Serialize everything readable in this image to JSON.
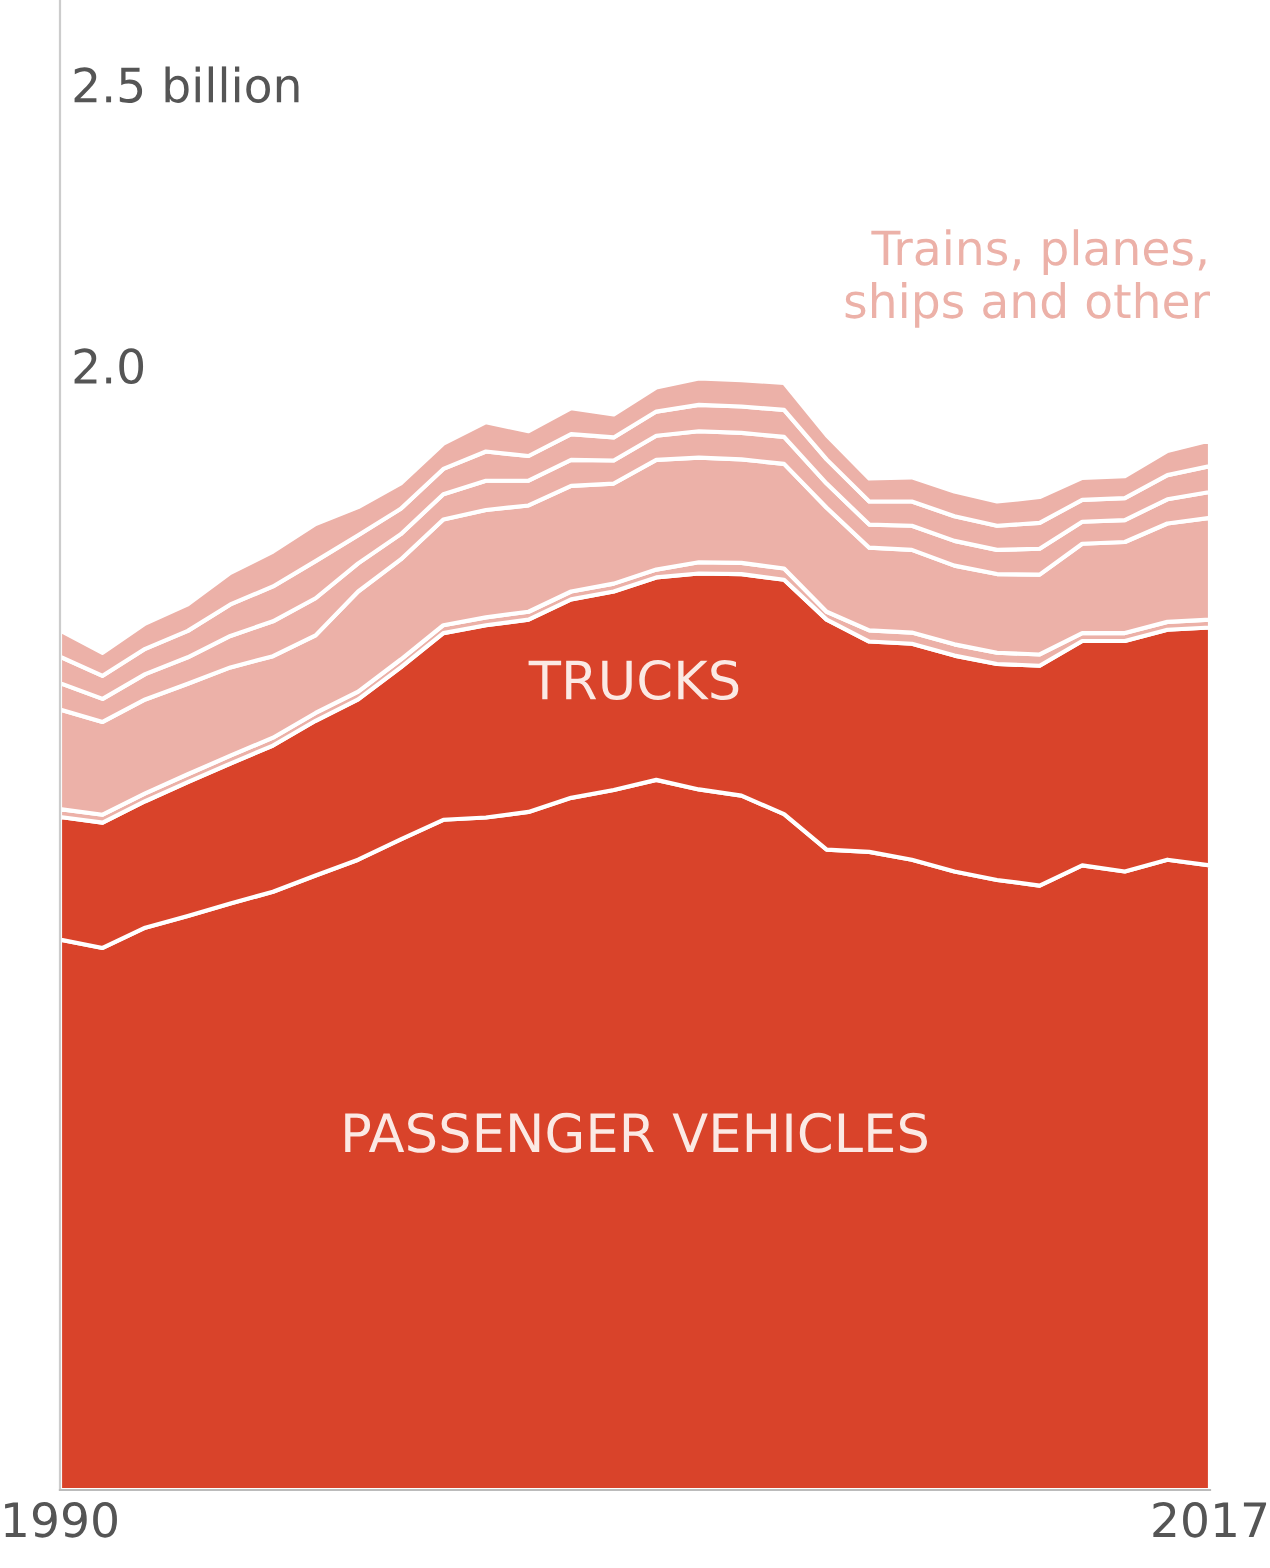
{
  "chart_data": {
    "type": "area",
    "stacked": true,
    "x": [
      "1990",
      "1991",
      "1992",
      "1993",
      "1994",
      "1995",
      "1996",
      "1997",
      "1998",
      "1999",
      "2000",
      "2001",
      "2002",
      "2003",
      "2004",
      "2005",
      "2006",
      "2007",
      "2008",
      "2009",
      "2010",
      "2011",
      "2012",
      "2013",
      "2014",
      "2015",
      "2016",
      "2017"
    ],
    "series": [
      {
        "name": "PASSENGER VEHICLES",
        "color": "#d9432a",
        "values": [
          0.979,
          0.964,
          1.0,
          1.021,
          1.043,
          1.064,
          1.093,
          1.121,
          1.157,
          1.192,
          1.196,
          1.206,
          1.231,
          1.245,
          1.263,
          1.246,
          1.235,
          1.202,
          1.139,
          1.135,
          1.121,
          1.1,
          1.085,
          1.075,
          1.111,
          1.1,
          1.121,
          1.111
        ]
      },
      {
        "name": "TRUCKS",
        "color": "#d9432a",
        "values": [
          0.218,
          0.223,
          0.225,
          0.238,
          0.249,
          0.26,
          0.275,
          0.285,
          0.306,
          0.332,
          0.342,
          0.342,
          0.353,
          0.353,
          0.36,
          0.384,
          0.394,
          0.417,
          0.409,
          0.374,
          0.384,
          0.384,
          0.384,
          0.391,
          0.399,
          0.41,
          0.409,
          0.423
        ]
      },
      {
        "color": "#ecb1a8",
        "values": [
          0.014,
          0.014,
          0.014,
          0.014,
          0.014,
          0.014,
          0.014,
          0.014,
          0.014,
          0.014,
          0.014,
          0.014,
          0.014,
          0.014,
          0.014,
          0.02,
          0.02,
          0.02,
          0.014,
          0.02,
          0.02,
          0.02,
          0.02,
          0.02,
          0.014,
          0.014,
          0.014,
          0.014
        ]
      },
      {
        "color": "#ecb1a8",
        "values": [
          0.177,
          0.165,
          0.167,
          0.161,
          0.157,
          0.145,
          0.138,
          0.178,
          0.178,
          0.188,
          0.191,
          0.189,
          0.188,
          0.178,
          0.195,
          0.186,
          0.184,
          0.186,
          0.185,
          0.147,
          0.147,
          0.14,
          0.14,
          0.142,
          0.159,
          0.162,
          0.175,
          0.181
        ]
      },
      {
        "color": "#ecb1a8",
        "values": [
          0.047,
          0.041,
          0.045,
          0.047,
          0.056,
          0.062,
          0.066,
          0.05,
          0.045,
          0.045,
          0.052,
          0.044,
          0.046,
          0.041,
          0.043,
          0.047,
          0.047,
          0.048,
          0.043,
          0.041,
          0.043,
          0.044,
          0.043,
          0.046,
          0.039,
          0.039,
          0.043,
          0.046
        ]
      },
      {
        "color": "#ecb1a8",
        "values": [
          0.047,
          0.041,
          0.045,
          0.047,
          0.056,
          0.062,
          0.066,
          0.05,
          0.045,
          0.045,
          0.052,
          0.044,
          0.046,
          0.041,
          0.043,
          0.047,
          0.047,
          0.048,
          0.043,
          0.041,
          0.043,
          0.044,
          0.043,
          0.046,
          0.039,
          0.039,
          0.043,
          0.046
        ]
      },
      {
        "name": "Trains, planes,\nships and other",
        "color": "#ecb1a8",
        "values": [
          0.047,
          0.041,
          0.045,
          0.047,
          0.056,
          0.062,
          0.066,
          0.05,
          0.045,
          0.045,
          0.052,
          0.044,
          0.046,
          0.041,
          0.043,
          0.047,
          0.047,
          0.048,
          0.043,
          0.041,
          0.043,
          0.044,
          0.043,
          0.046,
          0.039,
          0.039,
          0.043,
          0.046
        ]
      }
    ],
    "xlim": [
      "1990",
      "2017"
    ],
    "xticks": [
      {
        "value": "1990",
        "label": "1990"
      },
      {
        "value": "2017",
        "label": "2017"
      }
    ],
    "ylim": [
      0,
      2.65
    ],
    "yticks": [
      {
        "value": 2.0,
        "label": "2.0"
      },
      {
        "value": 2.5,
        "label": "2.5 billion"
      }
    ],
    "grid": false
  }
}
